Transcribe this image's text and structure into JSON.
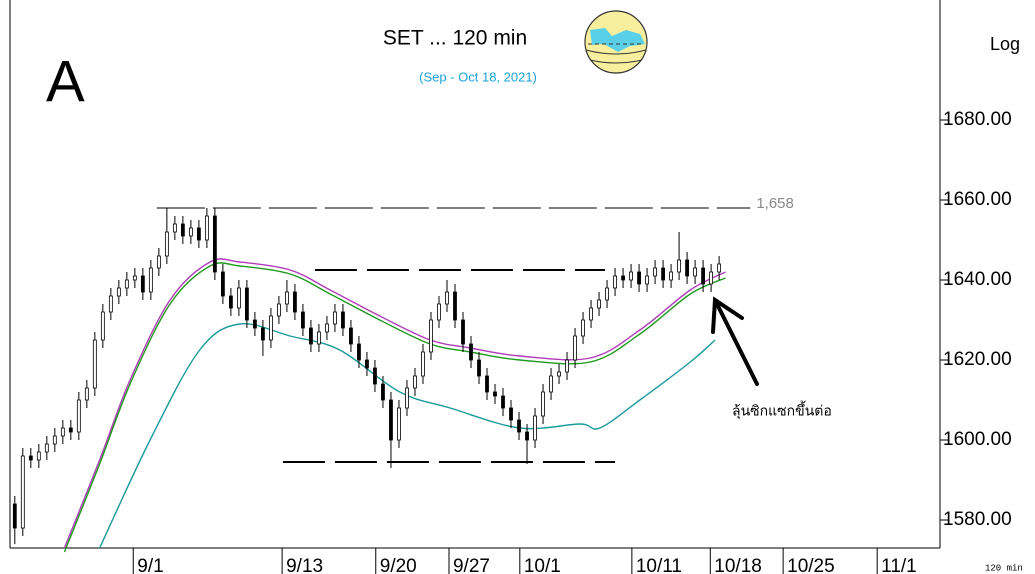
{
  "chart_data": {
    "type": "candlestick",
    "title": "SET ... 120 min",
    "subtitle": "(Sep - Oct 18, 2021)",
    "panel_label": "A",
    "scale_label": "Log",
    "footer": "120 min",
    "annotation": "ลุ้นซิกแซกขึ้นต่อ",
    "ylim": [
      1573,
      1710
    ],
    "yticks": [
      {
        "value": 1580,
        "label": "1580.00"
      },
      {
        "value": 1600,
        "label": "1600.00"
      },
      {
        "value": 1620,
        "label": "1620.00"
      },
      {
        "value": 1640,
        "label": "1640.00"
      },
      {
        "value": 1660,
        "label": "1660.00"
      },
      {
        "value": 1680,
        "label": "1680.00"
      }
    ],
    "xlim": [
      -0.6,
      115.6
    ],
    "xticks": [
      {
        "value": 14.8,
        "label": "9/1"
      },
      {
        "value": 33.4,
        "label": "9/13"
      },
      {
        "value": 45.1,
        "label": "9/20"
      },
      {
        "value": 54.25,
        "label": "9/27"
      },
      {
        "value": 63.1,
        "label": "10/1"
      },
      {
        "value": 77.1,
        "label": "10/11"
      },
      {
        "value": 86.9,
        "label": "10/18"
      },
      {
        "value": 96,
        "label": "10/25"
      },
      {
        "value": 107.75,
        "label": "11/1"
      }
    ],
    "candle_color": "#000000",
    "x": [
      0,
      1,
      2,
      3,
      4,
      5,
      6,
      7,
      8,
      9,
      10,
      11,
      12,
      13,
      14,
      15,
      16,
      17,
      18,
      19,
      20,
      21,
      22,
      23,
      24,
      25,
      26,
      27,
      28,
      29,
      30,
      31,
      32,
      33,
      34,
      35,
      36,
      37,
      38,
      39,
      40,
      41,
      42,
      43,
      44,
      45,
      46,
      47,
      48,
      49,
      50,
      51,
      52,
      53,
      54,
      55,
      56,
      57,
      58,
      59,
      60,
      61,
      62,
      63,
      64,
      65,
      66,
      67,
      68,
      69,
      70,
      71,
      72,
      73,
      74,
      75,
      76,
      77,
      78,
      79,
      80,
      81,
      82,
      83,
      84,
      85,
      86,
      87,
      88
    ],
    "ohlc": [
      [
        1584,
        1586,
        1574,
        1578
      ],
      [
        1578,
        1598,
        1576,
        1596
      ],
      [
        1596,
        1598,
        1593,
        1595
      ],
      [
        1595,
        1599,
        1593,
        1597
      ],
      [
        1597,
        1601,
        1595,
        1599
      ],
      [
        1599,
        1603,
        1597,
        1601
      ],
      [
        1601,
        1605,
        1599,
        1603
      ],
      [
        1603,
        1605,
        1600,
        1602
      ],
      [
        1602,
        1612,
        1600,
        1610
      ],
      [
        1610,
        1615,
        1608,
        1613
      ],
      [
        1613,
        1627,
        1611,
        1625
      ],
      [
        1625,
        1634,
        1623,
        1632
      ],
      [
        1632,
        1638,
        1630,
        1636
      ],
      [
        1636,
        1640,
        1634,
        1638
      ],
      [
        1638,
        1642,
        1636,
        1640
      ],
      [
        1640,
        1643,
        1638,
        1641
      ],
      [
        1641,
        1643,
        1635,
        1637
      ],
      [
        1637,
        1645,
        1635,
        1643
      ],
      [
        1643,
        1648,
        1641,
        1646
      ],
      [
        1646,
        1658,
        1644,
        1652
      ],
      [
        1652,
        1656,
        1650,
        1654
      ],
      [
        1654,
        1656,
        1649,
        1651
      ],
      [
        1651,
        1655,
        1649,
        1653
      ],
      [
        1653,
        1655,
        1648,
        1650
      ],
      [
        1650,
        1658,
        1648,
        1656
      ],
      [
        1656,
        1658,
        1640,
        1642
      ],
      [
        1642,
        1644,
        1634,
        1636
      ],
      [
        1636,
        1638,
        1631,
        1633
      ],
      [
        1633,
        1640,
        1631,
        1638
      ],
      [
        1638,
        1640,
        1628,
        1630
      ],
      [
        1630,
        1632,
        1626,
        1628
      ],
      [
        1628,
        1630,
        1621,
        1625
      ],
      [
        1625,
        1633,
        1623,
        1631
      ],
      [
        1631,
        1636,
        1629,
        1634
      ],
      [
        1634,
        1640,
        1632,
        1637
      ],
      [
        1637,
        1639,
        1630,
        1632
      ],
      [
        1632,
        1634,
        1626,
        1628
      ],
      [
        1628,
        1630,
        1622,
        1624
      ],
      [
        1624,
        1629,
        1622,
        1627
      ],
      [
        1627,
        1631,
        1625,
        1629
      ],
      [
        1629,
        1634,
        1627,
        1632
      ],
      [
        1632,
        1634,
        1626,
        1628
      ],
      [
        1628,
        1630,
        1622,
        1624
      ],
      [
        1624,
        1626,
        1618,
        1620
      ],
      [
        1620,
        1622,
        1616,
        1618
      ],
      [
        1618,
        1620,
        1612,
        1614
      ],
      [
        1614,
        1616,
        1608,
        1610
      ],
      [
        1610,
        1612,
        1593,
        1600
      ],
      [
        1600,
        1610,
        1598,
        1608
      ],
      [
        1608,
        1615,
        1606,
        1613
      ],
      [
        1613,
        1618,
        1611,
        1616
      ],
      [
        1616,
        1624,
        1614,
        1622
      ],
      [
        1622,
        1632,
        1620,
        1630
      ],
      [
        1630,
        1636,
        1628,
        1634
      ],
      [
        1634,
        1640,
        1632,
        1637
      ],
      [
        1637,
        1639,
        1628,
        1630
      ],
      [
        1630,
        1632,
        1622,
        1624
      ],
      [
        1624,
        1626,
        1618,
        1620
      ],
      [
        1620,
        1622,
        1614,
        1616
      ],
      [
        1616,
        1618,
        1610,
        1612
      ],
      [
        1612,
        1614,
        1609,
        1611
      ],
      [
        1611,
        1613,
        1606,
        1608
      ],
      [
        1608,
        1610,
        1603,
        1605
      ],
      [
        1605,
        1607,
        1600,
        1602
      ],
      [
        1602,
        1604,
        1594,
        1600
      ],
      [
        1600,
        1608,
        1598,
        1606
      ],
      [
        1606,
        1614,
        1604,
        1612
      ],
      [
        1612,
        1618,
        1610,
        1616
      ],
      [
        1616,
        1619,
        1614,
        1617
      ],
      [
        1617,
        1622,
        1615,
        1620
      ],
      [
        1620,
        1628,
        1618,
        1626
      ],
      [
        1626,
        1632,
        1624,
        1630
      ],
      [
        1630,
        1635,
        1628,
        1633
      ],
      [
        1633,
        1637,
        1631,
        1635
      ],
      [
        1635,
        1640,
        1633,
        1638
      ],
      [
        1638,
        1643,
        1636,
        1641
      ],
      [
        1641,
        1643,
        1638,
        1640
      ],
      [
        1640,
        1644,
        1638,
        1642
      ],
      [
        1642,
        1644,
        1637,
        1639
      ],
      [
        1639,
        1643,
        1637,
        1641
      ],
      [
        1641,
        1645,
        1639,
        1643
      ],
      [
        1643,
        1645,
        1638,
        1640
      ],
      [
        1640,
        1644,
        1638,
        1642
      ],
      [
        1642,
        1652,
        1640,
        1645
      ],
      [
        1645,
        1647,
        1639,
        1641
      ],
      [
        1641,
        1645,
        1639,
        1643
      ],
      [
        1643,
        1645,
        1637,
        1639
      ],
      [
        1639,
        1644,
        1637,
        1642
      ],
      [
        1642,
        1646,
        1640,
        1644
      ]
    ],
    "lines": [
      {
        "color": "#b03cb8",
        "x": [
          6.2,
          10.6,
          14.4,
          19.4,
          24.4,
          28.1,
          34.4,
          39.4,
          45.6,
          51.9,
          56.9,
          63.1,
          71.9,
          78.1,
          84.4,
          88.8
        ],
        "values": [
          1573,
          1595,
          1615,
          1635,
          1644.5,
          1644.5,
          1642.5,
          1637.5,
          1631,
          1625,
          1623,
          1621,
          1620.5,
          1627.5,
          1637.5,
          1642
        ]
      },
      {
        "color": "#1f9a1f",
        "x": [
          6.2,
          10.6,
          14.4,
          19.4,
          24.4,
          28.1,
          34.4,
          39.4,
          45.6,
          51.9,
          56.9,
          63.1,
          71.9,
          78.1,
          84.4,
          88.8
        ],
        "values": [
          1572,
          1594,
          1614,
          1634,
          1643.5,
          1643.5,
          1641.5,
          1636.5,
          1630,
          1624,
          1622,
          1620,
          1619.5,
          1626.5,
          1636.5,
          1640.5
        ]
      },
      {
        "color": "#1a9a9a",
        "x": [
          10.6,
          16.9,
          23.1,
          28.1,
          34.4,
          40.6,
          48.1,
          54.4,
          63.1,
          70.6,
          73.1,
          78.1,
          84.4,
          87.5
        ],
        "values": [
          1573,
          1600,
          1622.5,
          1629,
          1626,
          1622.5,
          1612,
          1608,
          1603,
          1604,
          1603,
          1610,
          1619.5,
          1625
        ]
      }
    ],
    "levels": [
      {
        "value": 1658,
        "label": "1,658",
        "x": [
          17.75,
          91.9
        ]
      },
      {
        "value": 1642.5,
        "x": [
          37.5,
          73.75
        ]
      },
      {
        "value": 1594.5,
        "x": [
          33.5,
          75
        ]
      }
    ]
  }
}
